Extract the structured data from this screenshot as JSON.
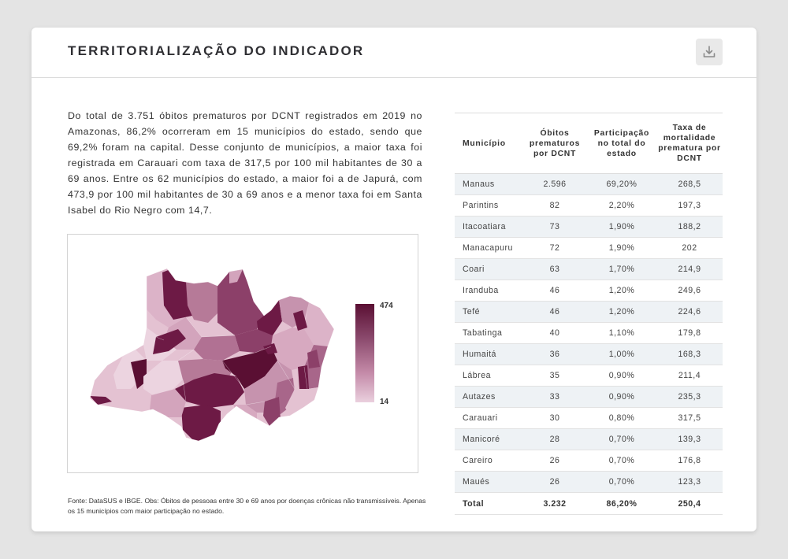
{
  "panel": {
    "title": "TERRITORIALIZAÇÃO DO INDICADOR",
    "download_icon": "download-icon"
  },
  "description": "Do total de 3.751 óbitos prematuros por DCNT registrados em 2019 no Amazonas, 86,2% ocorreram em 15 municípios do estado, sendo que 69,2% foram na capital. Desse conjunto de municípios, a maior taxa foi registrada em Carauari com taxa de 317,5 por 100 mil habitantes de 30 a 69 anos. Entre os 62 municípios do estado, a maior foi a de Japurá, com 473,9 por 100 mil habitantes de 30 a 69 anos e a menor taxa foi em Santa Isabel do Rio Negro com 14,7.",
  "map": {
    "legend_max": "474",
    "legend_min": "14",
    "colors": {
      "dark": "#5a0f33",
      "mid": "#8b4a6d",
      "light": "#c48aa8",
      "pale": "#ead0de"
    }
  },
  "source": "Fonte: DataSUS e IBGE. Obs: Óbitos de pessoas entre 30 e 69 anos por doenças crônicas não transmissíveis. Apenas os 15 municípios com maior participação no estado.",
  "table": {
    "headers": {
      "municipio": "Município",
      "obitos": "Óbitos prematuros por DCNT",
      "participacao": "Participação no total do estado",
      "taxa": "Taxa de mortalidade prematura por DCNT"
    },
    "rows": [
      {
        "municipio": "Manaus",
        "obitos": "2.596",
        "participacao": "69,20%",
        "taxa": "268,5"
      },
      {
        "municipio": "Parintins",
        "obitos": "82",
        "participacao": "2,20%",
        "taxa": "197,3"
      },
      {
        "municipio": "Itacoatiara",
        "obitos": "73",
        "participacao": "1,90%",
        "taxa": "188,2"
      },
      {
        "municipio": "Manacapuru",
        "obitos": "72",
        "participacao": "1,90%",
        "taxa": "202"
      },
      {
        "municipio": "Coari",
        "obitos": "63",
        "participacao": "1,70%",
        "taxa": "214,9"
      },
      {
        "municipio": "Iranduba",
        "obitos": "46",
        "participacao": "1,20%",
        "taxa": "249,6"
      },
      {
        "municipio": "Tefé",
        "obitos": "46",
        "participacao": "1,20%",
        "taxa": "224,6"
      },
      {
        "municipio": "Tabatinga",
        "obitos": "40",
        "participacao": "1,10%",
        "taxa": "179,8"
      },
      {
        "municipio": "Humaitá",
        "obitos": "36",
        "participacao": "1,00%",
        "taxa": "168,3"
      },
      {
        "municipio": "Lábrea",
        "obitos": "35",
        "participacao": "0,90%",
        "taxa": "211,4"
      },
      {
        "municipio": "Autazes",
        "obitos": "33",
        "participacao": "0,90%",
        "taxa": "235,3"
      },
      {
        "municipio": "Carauari",
        "obitos": "30",
        "participacao": "0,80%",
        "taxa": "317,5"
      },
      {
        "municipio": "Manicoré",
        "obitos": "28",
        "participacao": "0,70%",
        "taxa": "139,3"
      },
      {
        "municipio": "Careiro",
        "obitos": "26",
        "participacao": "0,70%",
        "taxa": "176,8"
      },
      {
        "municipio": "Maués",
        "obitos": "26",
        "participacao": "0,70%",
        "taxa": "123,3"
      }
    ],
    "total": {
      "municipio": "Total",
      "obitos": "3.232",
      "participacao": "86,20%",
      "taxa": "250,4"
    }
  }
}
